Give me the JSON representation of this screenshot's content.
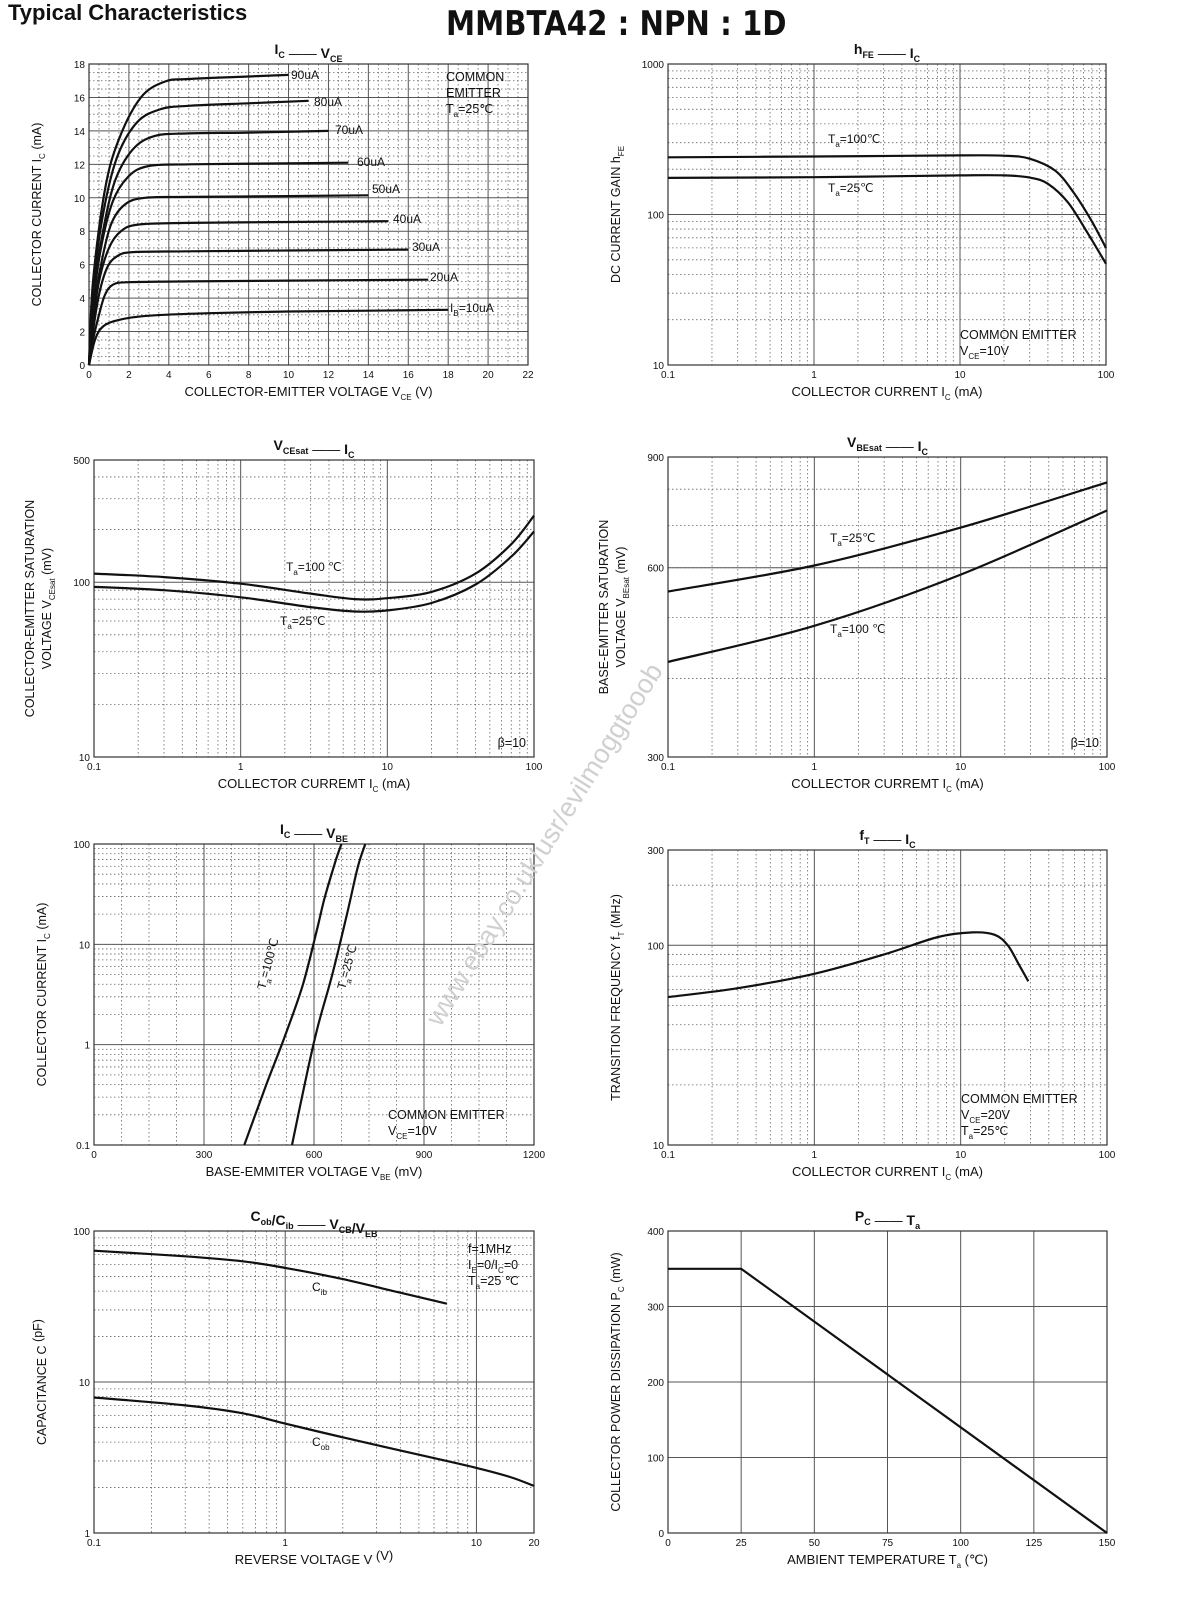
{
  "header": {
    "title": "Typical Characteristics",
    "part": "MMBTA42 : NPN : 1D"
  },
  "watermark": "www.ebay.co.uk/usr/evilmoggtooob",
  "chart_data": [
    {
      "id": "ic_vce",
      "type": "line",
      "title": "I_C — V_CE",
      "xscale": "linear",
      "yscale": "linear",
      "xlim": [
        0,
        22
      ],
      "ylim": [
        0,
        18
      ],
      "xticks": [
        0,
        2,
        4,
        6,
        8,
        10,
        12,
        14,
        16,
        18,
        20,
        22
      ],
      "yticks": [
        0,
        2,
        4,
        6,
        8,
        10,
        12,
        14,
        16,
        18
      ],
      "xlabel": "COLLECTOR-EMITTER VOLTAGE",
      "xlabel_var": "V",
      "xlabel_sub": "CE",
      "xunit": "(V)",
      "ylabel": "COLLECTOR CURRENT",
      "ylabel_var": "I",
      "ylabel_sub": "C",
      "yunit": "(mA)",
      "annotation": [
        "COMMON",
        "EMITTER",
        "T_a=25℃"
      ],
      "series": [
        {
          "name": "I_B=10uA",
          "label": "10uA",
          "points": [
            [
              0,
              0
            ],
            [
              0.3,
              1.5
            ],
            [
              0.7,
              2.3
            ],
            [
              1.5,
              2.7
            ],
            [
              3,
              2.95
            ],
            [
              6,
              3.1
            ],
            [
              10,
              3.2
            ],
            [
              14,
              3.25
            ],
            [
              18,
              3.3
            ]
          ]
        },
        {
          "name": "20uA",
          "label": "20uA",
          "points": [
            [
              0,
              0
            ],
            [
              0.2,
              1.5
            ],
            [
              0.5,
              3
            ],
            [
              0.8,
              4.2
            ],
            [
              1.2,
              4.8
            ],
            [
              2,
              4.95
            ],
            [
              5,
              5.0
            ],
            [
              10,
              5.05
            ],
            [
              17,
              5.1
            ]
          ]
        },
        {
          "name": "30uA",
          "label": "30uA",
          "points": [
            [
              0,
              0
            ],
            [
              0.2,
              2
            ],
            [
              0.5,
              4.2
            ],
            [
              0.9,
              5.8
            ],
            [
              1.4,
              6.5
            ],
            [
              2.2,
              6.75
            ],
            [
              5,
              6.8
            ],
            [
              10,
              6.85
            ],
            [
              16,
              6.9
            ]
          ]
        },
        {
          "name": "40uA",
          "label": "40uA",
          "points": [
            [
              0,
              0
            ],
            [
              0.2,
              2.5
            ],
            [
              0.5,
              5
            ],
            [
              1,
              7
            ],
            [
              1.6,
              8
            ],
            [
              2.5,
              8.4
            ],
            [
              5,
              8.5
            ],
            [
              10,
              8.55
            ],
            [
              15,
              8.6
            ]
          ]
        },
        {
          "name": "50uA",
          "label": "50uA",
          "points": [
            [
              0,
              0
            ],
            [
              0.2,
              3
            ],
            [
              0.6,
              6
            ],
            [
              1.1,
              8.4
            ],
            [
              1.8,
              9.6
            ],
            [
              2.8,
              10.0
            ],
            [
              5,
              10.05
            ],
            [
              10,
              10.1
            ],
            [
              14,
              10.15
            ]
          ]
        },
        {
          "name": "60uA",
          "label": "60uA",
          "points": [
            [
              0,
              0
            ],
            [
              0.2,
              3.5
            ],
            [
              0.6,
              7
            ],
            [
              1.2,
              9.8
            ],
            [
              2,
              11.3
            ],
            [
              3,
              11.9
            ],
            [
              5,
              12.0
            ],
            [
              9,
              12.05
            ],
            [
              13,
              12.1
            ]
          ]
        },
        {
          "name": "70uA",
          "label": "70uA",
          "points": [
            [
              0,
              0
            ],
            [
              0.2,
              4
            ],
            [
              0.7,
              8
            ],
            [
              1.3,
              11
            ],
            [
              2.2,
              12.9
            ],
            [
              3.3,
              13.7
            ],
            [
              5,
              13.85
            ],
            [
              8,
              13.9
            ],
            [
              12,
              14.0
            ]
          ]
        },
        {
          "name": "80uA",
          "label": "80uA",
          "points": [
            [
              0,
              0
            ],
            [
              0.2,
              4.5
            ],
            [
              0.7,
              9
            ],
            [
              1.4,
              12.4
            ],
            [
              2.4,
              14.5
            ],
            [
              3.6,
              15.3
            ],
            [
              5,
              15.5
            ],
            [
              8,
              15.65
            ],
            [
              11,
              15.8
            ]
          ]
        },
        {
          "name": "90uA",
          "label": "90uA",
          "points": [
            [
              0,
              0
            ],
            [
              0.2,
              5
            ],
            [
              0.8,
              10.5
            ],
            [
              1.5,
              13.5
            ],
            [
              2.6,
              16
            ],
            [
              3.8,
              16.95
            ],
            [
              5,
              17.1
            ],
            [
              8,
              17.25
            ],
            [
              10,
              17.35
            ]
          ]
        }
      ]
    },
    {
      "id": "hfe_ic",
      "type": "line",
      "title": "h_FE — I_C",
      "xscale": "log",
      "yscale": "log",
      "xlim": [
        0.1,
        100
      ],
      "ylim": [
        10,
        1000
      ],
      "xticks": [
        0.1,
        1,
        10,
        100
      ],
      "yticks": [
        10,
        100,
        1000
      ],
      "xlabel": "COLLECTOR CURRENT",
      "xlabel_var": "I",
      "xlabel_sub": "C",
      "xunit": "(mA)",
      "ylabel": "DC CURRENT GAIN",
      "ylabel_var": "h",
      "ylabel_sub": "FE",
      "yunit": "",
      "annotation": [
        "COMMON EMITTER",
        "V_CE=10V"
      ],
      "series": [
        {
          "name": "T_a=100℃",
          "label": "T_a=100℃",
          "points": [
            [
              0.1,
              240
            ],
            [
              1,
              243
            ],
            [
              10,
              247
            ],
            [
              20,
              246
            ],
            [
              30,
              235
            ],
            [
              45,
              195
            ],
            [
              60,
              140
            ],
            [
              80,
              90
            ],
            [
              100,
              60
            ]
          ]
        },
        {
          "name": "T_a=25℃",
          "label": "T_a=25℃",
          "points": [
            [
              0.1,
              175
            ],
            [
              1,
              177
            ],
            [
              10,
              182
            ],
            [
              20,
              182
            ],
            [
              30,
              176
            ],
            [
              40,
              160
            ],
            [
              55,
              120
            ],
            [
              75,
              75
            ],
            [
              100,
              47
            ]
          ]
        }
      ]
    },
    {
      "id": "vcesat_ic",
      "type": "line",
      "title": "V_CEsat — I_C",
      "xscale": "log",
      "yscale": "log",
      "xlim": [
        0.1,
        100
      ],
      "ylim": [
        10,
        500
      ],
      "xticks": [
        0.1,
        1,
        10,
        100
      ],
      "yticks": [
        10,
        100,
        500
      ],
      "xlabel": "COLLECTOR CURREMT",
      "xlabel_var": "I",
      "xlabel_sub": "C",
      "xunit": "(mA)",
      "ylabel": "COLLECTOR-EMITTER SATURATION",
      "ylabel2": "VOLTAGE",
      "ylabel_var": "V",
      "ylabel_sub": "CEsat",
      "yunit": "(mV)",
      "annotation": [
        "β=10"
      ],
      "series": [
        {
          "name": "T_a=100 ℃",
          "label": "T_a=100 ℃",
          "points": [
            [
              0.1,
              112
            ],
            [
              0.3,
              107
            ],
            [
              1,
              98
            ],
            [
              3,
              86
            ],
            [
              6,
              80
            ],
            [
              10,
              81
            ],
            [
              20,
              88
            ],
            [
              40,
              112
            ],
            [
              70,
              165
            ],
            [
              100,
              240
            ]
          ]
        },
        {
          "name": "T_a=25℃",
          "label": "T_a=25℃",
          "points": [
            [
              0.1,
              94
            ],
            [
              0.3,
              90
            ],
            [
              1,
              82
            ],
            [
              3,
              72
            ],
            [
              6,
              68
            ],
            [
              10,
              69
            ],
            [
              20,
              76
            ],
            [
              40,
              97
            ],
            [
              70,
              140
            ],
            [
              100,
              195
            ]
          ]
        }
      ]
    },
    {
      "id": "vbesat_ic",
      "type": "line",
      "title": "V_BEsat — I_C",
      "xscale": "log",
      "yscale": "log",
      "xlim": [
        0.1,
        100
      ],
      "ylim": [
        300,
        900
      ],
      "xticks": [
        0.1,
        1,
        10,
        100
      ],
      "yticks": [
        300,
        600,
        900
      ],
      "xlabel": "COLLECTOR CURREMT",
      "xlabel_var": "I",
      "xlabel_sub": "C",
      "xunit": "(mA)",
      "ylabel": "BASE-EMITTER SATURATION",
      "ylabel2": "VOLTAGE",
      "ylabel_var": "V",
      "ylabel_sub": "BEsat",
      "yunit": "(mV)",
      "annotation": [
        "β=10"
      ],
      "series": [
        {
          "name": "T_a=25℃",
          "label": "T_a=25℃",
          "points": [
            [
              0.1,
              550
            ],
            [
              1,
              605
            ],
            [
              10,
              695
            ],
            [
              100,
              820
            ]
          ]
        },
        {
          "name": "T_a=100 ℃",
          "label": "T_a=100 ℃",
          "points": [
            [
              0.1,
              425
            ],
            [
              1,
              485
            ],
            [
              10,
              585
            ],
            [
              100,
              740
            ]
          ]
        }
      ]
    },
    {
      "id": "ic_vbe",
      "type": "line",
      "title": "I_C — V_BE",
      "xscale": "linear",
      "yscale": "log",
      "xlim": [
        0,
        1200
      ],
      "ylim": [
        0.1,
        100
      ],
      "xticks": [
        0,
        300,
        600,
        900,
        1200
      ],
      "yticks": [
        0.1,
        1,
        10,
        100
      ],
      "xlabel": "BASE-EMMITER VOLTAGE",
      "xlabel_var": "V",
      "xlabel_sub": "BE",
      "xunit": "(mV)",
      "ylabel": "COLLECTOR CURRENT",
      "ylabel_var": "I",
      "ylabel_sub": "C",
      "yunit": "(mA)",
      "annotation": [
        "COMMON EMITTER",
        "V_CE=10V"
      ],
      "series": [
        {
          "name": "T_a=100℃",
          "label": "T_a=100℃",
          "points": [
            [
              410,
              0.1
            ],
            [
              470,
              0.4
            ],
            [
              520,
              1.2
            ],
            [
              570,
              4
            ],
            [
              610,
              15
            ],
            [
              630,
              30
            ],
            [
              660,
              70
            ],
            [
              675,
              100
            ]
          ]
        },
        {
          "name": "T_a=25℃",
          "label": "T_a=25℃",
          "points": [
            [
              540,
              0.1
            ],
            [
              580,
              0.5
            ],
            [
              610,
              1.5
            ],
            [
              650,
              5
            ],
            [
              690,
              20
            ],
            [
              720,
              60
            ],
            [
              740,
              100
            ]
          ]
        }
      ]
    },
    {
      "id": "ft_ic",
      "type": "line",
      "title": "f_T — I_C",
      "xscale": "log",
      "yscale": "log",
      "xlim": [
        0.1,
        100
      ],
      "ylim": [
        10,
        300
      ],
      "xticks": [
        0.1,
        1,
        10,
        100
      ],
      "yticks": [
        10,
        100,
        300
      ],
      "xlabel": "COLLECTOR CURRENT",
      "xlabel_var": "I",
      "xlabel_sub": "C",
      "xunit": "(mA)",
      "ylabel": "TRANSITION FREQUENCY",
      "ylabel_var": "f",
      "ylabel_sub": "T",
      "yunit": "(MHz)",
      "annotation": [
        "COMMON EMITTER",
        "V_CE=20V",
        "T_a=25℃"
      ],
      "series": [
        {
          "name": "f_T",
          "label": "",
          "points": [
            [
              0.1,
              55
            ],
            [
              0.3,
              61
            ],
            [
              1,
              72
            ],
            [
              3,
              90
            ],
            [
              7,
              110
            ],
            [
              12,
              116
            ],
            [
              17,
              113
            ],
            [
              21,
              100
            ],
            [
              25,
              80
            ],
            [
              29,
              66
            ]
          ]
        }
      ]
    },
    {
      "id": "cap_v",
      "type": "line",
      "title": "C_ob/C_ib — V_CB/V_EB",
      "xscale": "log",
      "yscale": "log",
      "xlim": [
        0.1,
        20
      ],
      "ylim": [
        1,
        100
      ],
      "xticks": [
        0.1,
        1,
        10,
        20
      ],
      "yticks": [
        1,
        10,
        100
      ],
      "xlabel": "REVERSE VOLTAGE",
      "xlabel_var": "V",
      "xlabel_sub": "",
      "xunit": "(V)",
      "ylabel": "CAPACITANCE",
      "ylabel_var": "C",
      "ylabel_sub": "",
      "yunit": "(pF)",
      "annotation": [
        "f=1MHz",
        "I_E=0/I_C=0",
        "T_a=25 ℃"
      ],
      "series": [
        {
          "name": "C_ib",
          "label": "C_ib",
          "points": [
            [
              0.1,
              74
            ],
            [
              0.3,
              68
            ],
            [
              0.6,
              63
            ],
            [
              1,
              57
            ],
            [
              2,
              48
            ],
            [
              4,
              39
            ],
            [
              7,
              33
            ]
          ]
        },
        {
          "name": "C_ob",
          "label": "C_ob",
          "points": [
            [
              0.1,
              7.9
            ],
            [
              0.3,
              7.0
            ],
            [
              0.6,
              6.2
            ],
            [
              1,
              5.3
            ],
            [
              2,
              4.3
            ],
            [
              5,
              3.3
            ],
            [
              10,
              2.7
            ],
            [
              15,
              2.35
            ],
            [
              20,
              2.05
            ]
          ]
        }
      ]
    },
    {
      "id": "pc_ta",
      "type": "line",
      "title": "P_C — T_a",
      "xscale": "linear",
      "yscale": "linear",
      "xlim": [
        0,
        150
      ],
      "ylim": [
        0,
        400
      ],
      "xticks": [
        0,
        25,
        50,
        75,
        100,
        125,
        150
      ],
      "yticks": [
        0,
        100,
        200,
        300,
        400
      ],
      "xlabel": "AMBIENT TEMPERATURE",
      "xlabel_var": "T",
      "xlabel_sub": "a",
      "xunit": "(℃)",
      "ylabel": "COLLECTOR POWER DISSIPATION",
      "ylabel_var": "P",
      "ylabel_sub": "C",
      "yunit": "(mW)",
      "annotation": [],
      "series": [
        {
          "name": "P_C",
          "label": "",
          "points": [
            [
              0,
              350
            ],
            [
              25,
              350
            ],
            [
              150,
              0
            ]
          ]
        }
      ]
    }
  ]
}
